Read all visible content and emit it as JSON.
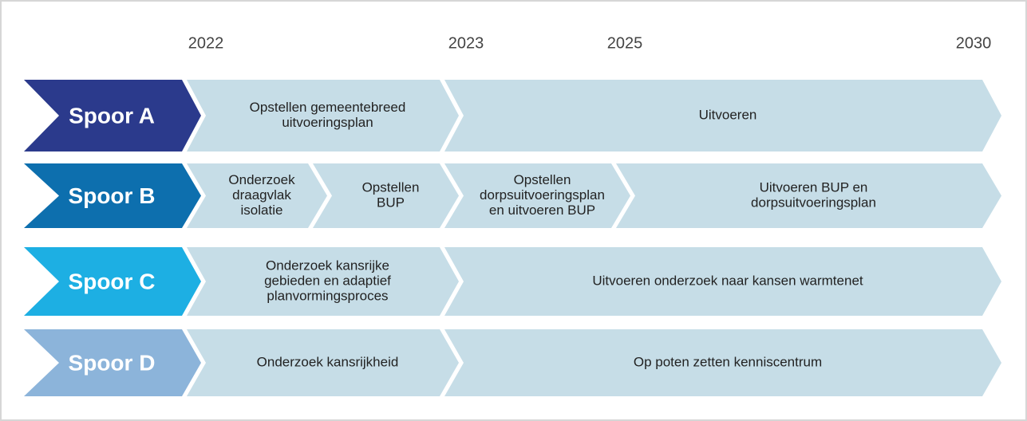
{
  "years": [
    "2022",
    "2023",
    "2025",
    "2030"
  ],
  "rows": [
    {
      "label": "Spoor A",
      "segments": [
        {
          "lines": [
            "Opstellen gemeentebreed",
            "uitvoeringsplan"
          ]
        },
        {
          "lines": [
            "Uitvoeren"
          ]
        }
      ]
    },
    {
      "label": "Spoor B",
      "segments": [
        {
          "lines": [
            "Onderzoek",
            "draagvlak",
            "isolatie"
          ]
        },
        {
          "lines": [
            "Opstellen",
            "BUP"
          ]
        },
        {
          "lines": [
            "Opstellen",
            "dorpsuitvoeringsplan",
            "en uitvoeren BUP"
          ]
        },
        {
          "lines": [
            "Uitvoeren BUP en",
            "dorpsuitvoeringsplan"
          ]
        }
      ]
    },
    {
      "label": "Spoor C",
      "segments": [
        {
          "lines": [
            "Onderzoek kansrijke",
            "gebieden en adaptief",
            "planvormingsproces"
          ]
        },
        {
          "lines": [
            "Uitvoeren onderzoek naar kansen warmtenet"
          ]
        }
      ]
    },
    {
      "label": "Spoor D",
      "segments": [
        {
          "lines": [
            "Onderzoek kansrijkheid"
          ]
        },
        {
          "lines": [
            "Op poten zetten kenniscentrum"
          ]
        }
      ]
    }
  ]
}
